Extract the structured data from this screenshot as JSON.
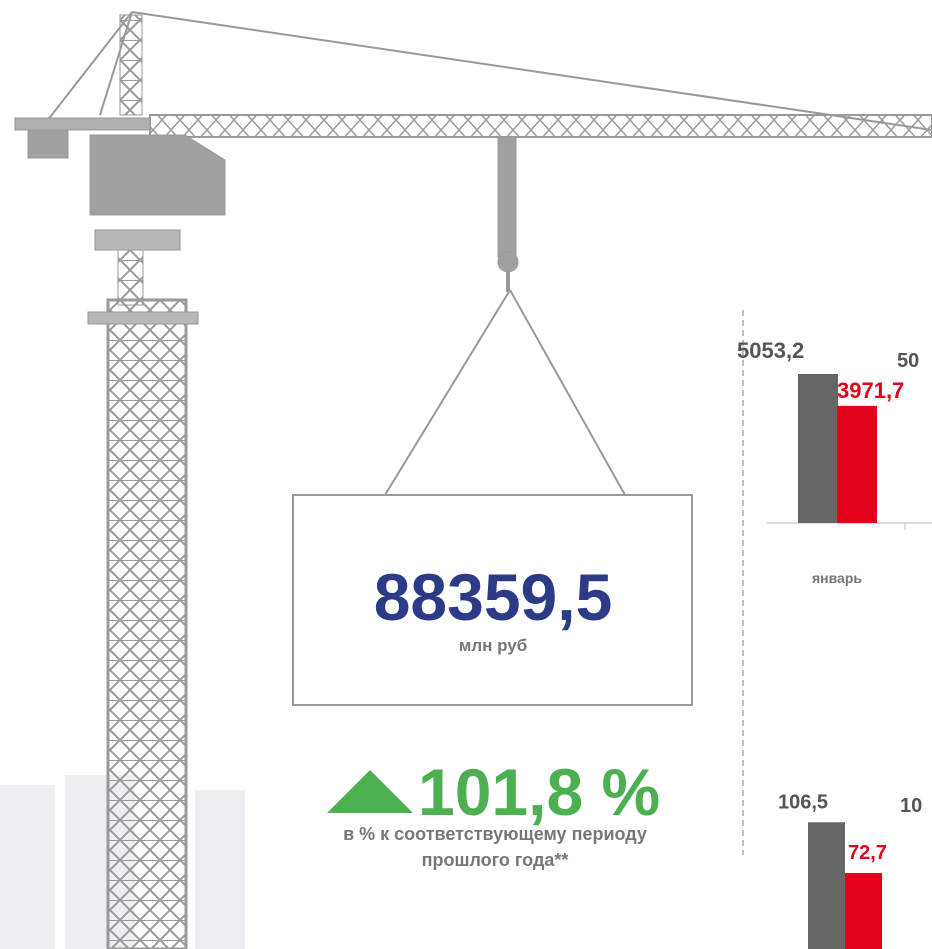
{
  "headline": {
    "value": "88359,5",
    "unit": "млн руб",
    "change": "101,8 %",
    "caption": [
      "в % к соответствующему периоду",
      "прошлого года**"
    ]
  },
  "chart_data": [
    {
      "type": "bar",
      "categories": [
        "январь"
      ],
      "series": [
        {
          "color": "#666666",
          "values": [
            5053.2
          ],
          "value_labels": [
            "5053,2"
          ]
        },
        {
          "color": "#e2001a",
          "values": [
            3971.7
          ],
          "value_labels": [
            "3971,7"
          ]
        }
      ],
      "cut_labels": [
        "50"
      ]
    },
    {
      "type": "bar",
      "series": [
        {
          "color": "#666666",
          "values": [
            106.5
          ],
          "value_labels": [
            "106,5"
          ]
        },
        {
          "color": "#e2001a",
          "values": [
            72.7
          ],
          "value_labels": [
            "72,7"
          ]
        }
      ],
      "cut_labels": [
        "10"
      ]
    }
  ]
}
